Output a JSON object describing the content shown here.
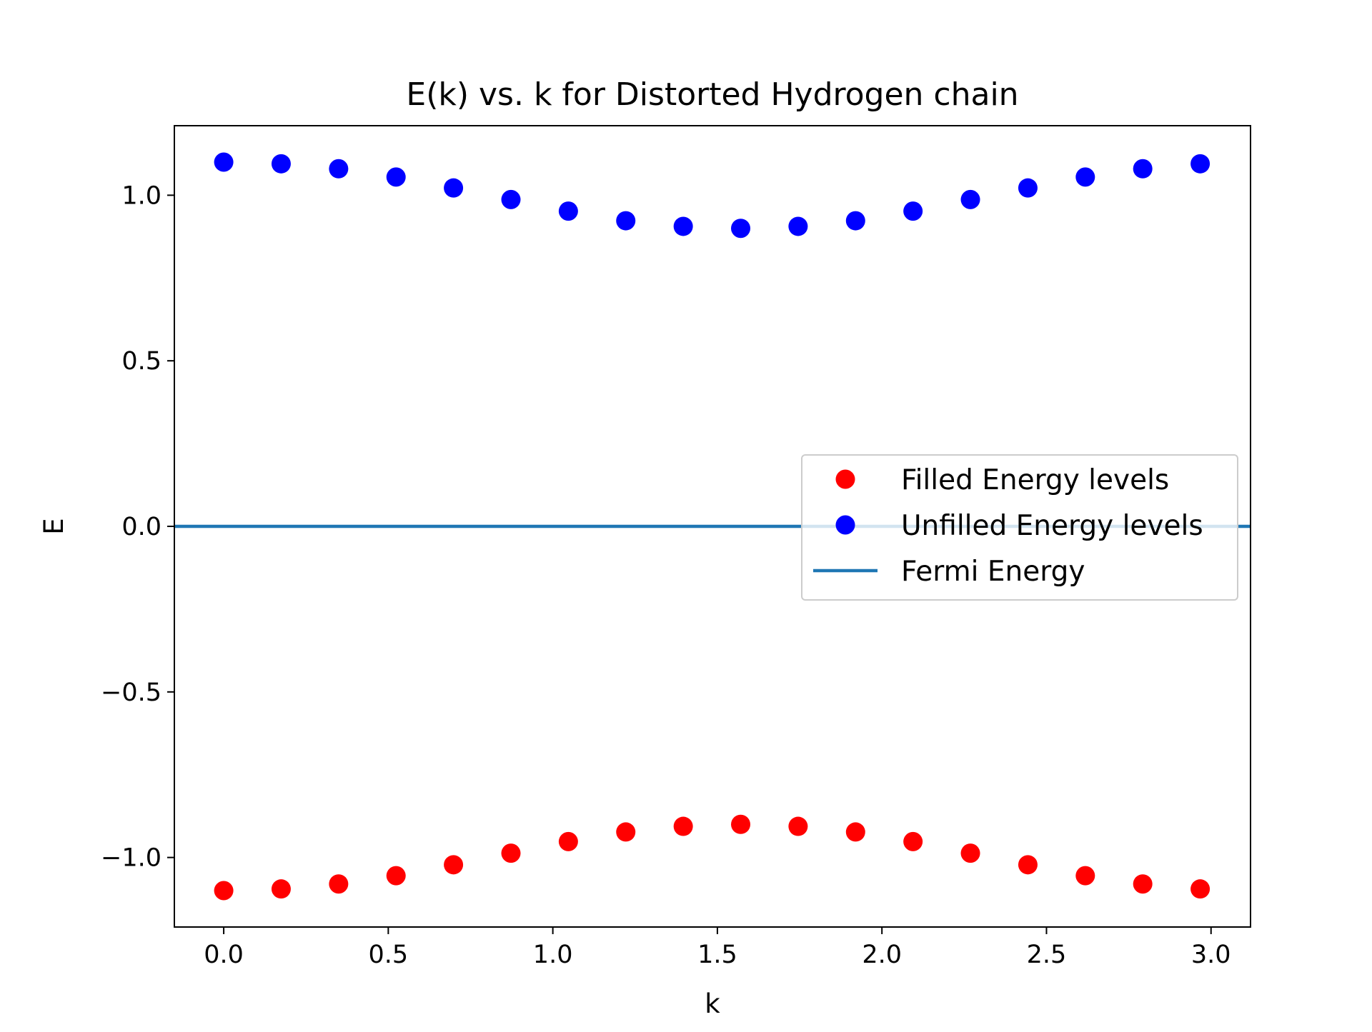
{
  "chart_data": {
    "type": "scatter",
    "title": "E(k) vs. k for Distorted Hydrogen chain",
    "xlabel": "k",
    "ylabel": "E",
    "xlim": [
      -0.15,
      3.12
    ],
    "ylim": [
      -1.21,
      1.21
    ],
    "x_ticks": [
      0.0,
      0.5,
      1.0,
      1.5,
      2.0,
      2.5,
      3.0
    ],
    "x_tick_labels": [
      "0.0",
      "0.5",
      "1.0",
      "1.5",
      "2.0",
      "2.5",
      "3.0"
    ],
    "y_ticks": [
      1.0,
      0.5,
      0.0,
      -0.5,
      -1.0
    ],
    "y_tick_labels": [
      "1.0",
      "0.5",
      "0.0",
      "−0.5",
      "−1.0"
    ],
    "grid": false,
    "legend_position": "center-right",
    "x": [
      0.0,
      0.1745,
      0.3491,
      0.5236,
      0.6981,
      0.8727,
      1.0472,
      1.2217,
      1.3963,
      1.5708,
      1.7453,
      1.9199,
      2.0944,
      2.2689,
      2.4435,
      2.618,
      2.7925,
      2.9671
    ],
    "series": [
      {
        "name": "Filled Energy levels",
        "kind": "scatter",
        "color": "#ff0000",
        "values": [
          -1.1,
          -1.095,
          -1.08,
          -1.055,
          -1.022,
          -0.987,
          -0.952,
          -0.923,
          -0.906,
          -0.9,
          -0.906,
          -0.923,
          -0.952,
          -0.987,
          -1.022,
          -1.055,
          -1.08,
          -1.095
        ]
      },
      {
        "name": "Unfilled Energy levels",
        "kind": "scatter",
        "color": "#0000ff",
        "values": [
          1.1,
          1.095,
          1.08,
          1.055,
          1.022,
          0.987,
          0.952,
          0.923,
          0.906,
          0.9,
          0.906,
          0.923,
          0.952,
          0.987,
          1.022,
          1.055,
          1.08,
          1.095
        ]
      },
      {
        "name": "Fermi Energy",
        "kind": "hline",
        "color": "#1f77b4",
        "value": 0.0
      }
    ]
  }
}
